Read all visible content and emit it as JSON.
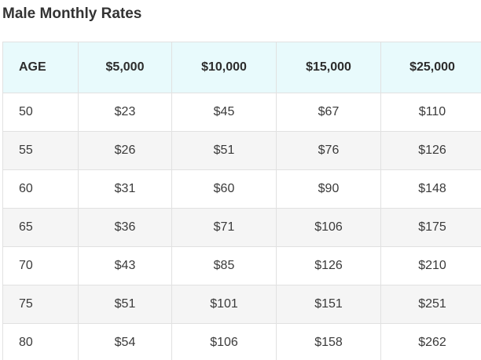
{
  "page": {
    "title": "Male Monthly Rates"
  },
  "table": {
    "headers": [
      "AGE",
      "$5,000",
      "$10,000",
      "$15,000",
      "$25,000"
    ],
    "rows": [
      [
        "50",
        "$23",
        "$45",
        "$67",
        "$110"
      ],
      [
        "55",
        "$26",
        "$51",
        "$76",
        "$126"
      ],
      [
        "60",
        "$31",
        "$60",
        "$90",
        "$148"
      ],
      [
        "65",
        "$36",
        "$71",
        "$106",
        "$175"
      ],
      [
        "70",
        "$43",
        "$85",
        "$126",
        "$210"
      ],
      [
        "75",
        "$51",
        "$101",
        "$151",
        "$251"
      ],
      [
        "80",
        "$54",
        "$106",
        "$158",
        "$262"
      ]
    ]
  },
  "colors": {
    "header_background": "#e8fafc",
    "stripe_background": "#f5f5f5",
    "border": "#e1e1e1",
    "text": "#333333"
  }
}
